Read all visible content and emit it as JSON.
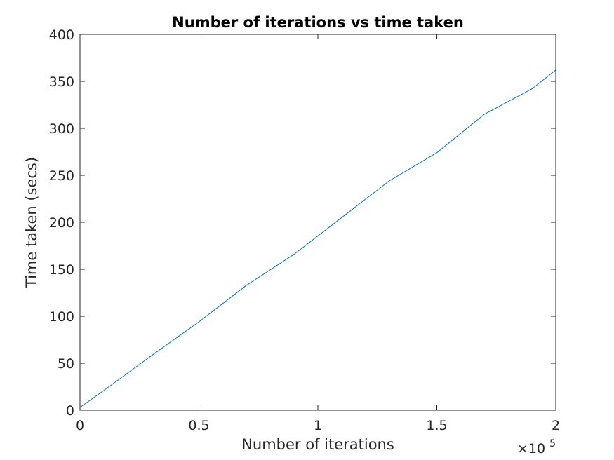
{
  "chart_data": {
    "type": "line",
    "title": "Number of iterations vs time taken",
    "xlabel": "Number of iterations",
    "ylabel": "Time taken (secs)",
    "xlim": [
      0,
      200000
    ],
    "ylim": [
      0,
      400
    ],
    "xticks": [
      0,
      50000,
      100000,
      150000,
      200000
    ],
    "xtick_labels": [
      "0",
      "0.5",
      "1",
      "1.5",
      "2"
    ],
    "x_multiplier_base": "×10",
    "x_multiplier_exp": "5",
    "yticks": [
      0,
      50,
      100,
      150,
      200,
      250,
      300,
      350,
      400
    ],
    "ytick_labels": [
      "0",
      "50",
      "100",
      "150",
      "200",
      "250",
      "300",
      "350",
      "400"
    ],
    "grid": false,
    "legend": "none",
    "series": [
      {
        "color": "#0072BD",
        "x": [
          0,
          10000,
          30000,
          50000,
          70000,
          90000,
          110000,
          130000,
          150000,
          170000,
          190000,
          200000
        ],
        "y": [
          3,
          21,
          58,
          94,
          133,
          166,
          205,
          244,
          274,
          315,
          342,
          362
        ]
      }
    ]
  }
}
